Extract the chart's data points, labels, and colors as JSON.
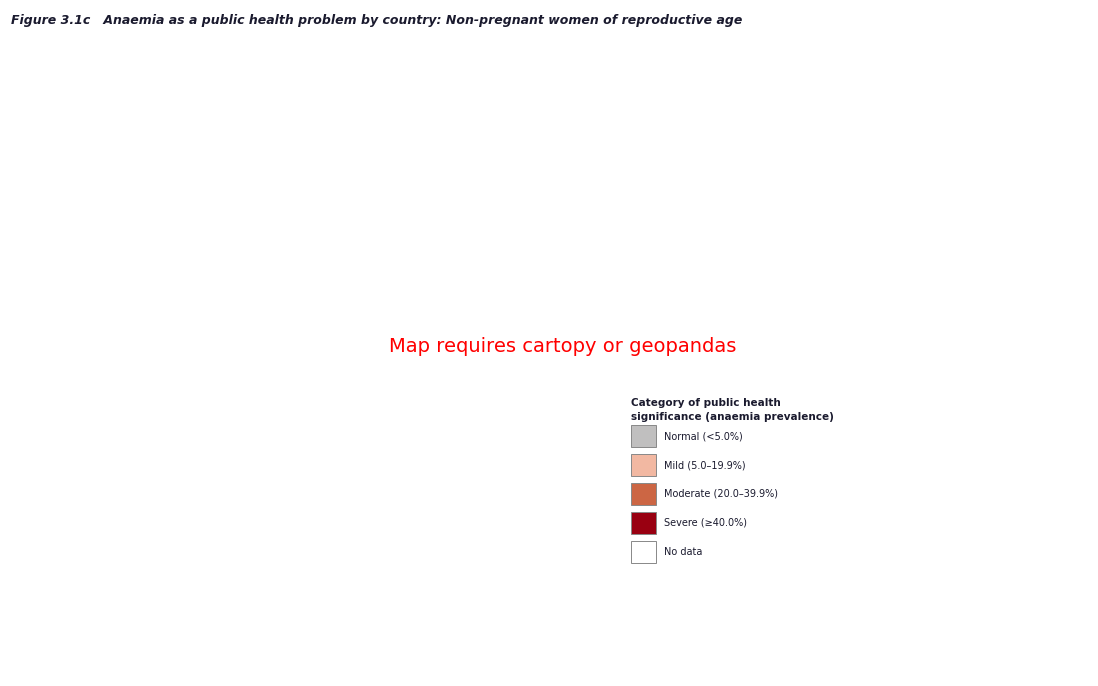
{
  "title": "Figure 3.1c   Anaemia as a public health problem by country: Non-pregnant women of reproductive age",
  "title_fontsize": 9,
  "title_fontstyle": "italic",
  "title_fontweight": "bold",
  "background_color": "#ffffff",
  "border_color": "#6b5a4e",
  "border_linewidth": 0.35,
  "legend_title_line1": "Category of public health",
  "legend_title_line2": "significance (anaemia prevalence)",
  "legend_title_fontsize": 7.5,
  "legend_title_fontweight": "bold",
  "legend_labels": [
    "Normal (<5.0%)",
    "Mild (5.0–19.9%)",
    "Moderate (20.0–39.9%)",
    "Severe (≥40.0%)",
    "No data"
  ],
  "legend_colors": [
    "#c0bfbf",
    "#f2b8a2",
    "#cc6644",
    "#990011",
    "#ffffff"
  ],
  "legend_edge_color": "#888888",
  "country_colors": {
    "Afghanistan": "#cc6644",
    "Angola": "#990011",
    "Albania": "#f2b8a2",
    "United Arab Emirates": "#f2b8a2",
    "Argentina": "#f2b8a2",
    "Armenia": "#cc6644",
    "Australia": "#f2b8a2",
    "Austria": "#f2b8a2",
    "Azerbaijan": "#cc6644",
    "Burundi": "#990011",
    "Belgium": "#f2b8a2",
    "Benin": "#990011",
    "Burkina Faso": "#990011",
    "Bangladesh": "#990011",
    "Bulgaria": "#f2b8a2",
    "Bahrain": "#f2b8a2",
    "Bahamas": "#f2b8a2",
    "Bosnia and Herzegovina": "#f2b8a2",
    "Bosnia and Herz.": "#f2b8a2",
    "Belarus": "#f2b8a2",
    "Belize": "#f2b8a2",
    "Bolivia": "#990011",
    "Brazil": "#f2b8a2",
    "Barbados": "#f2b8a2",
    "Bhutan": "#cc6644",
    "Botswana": "#cc6644",
    "Central African Rep.": "#990011",
    "Central African Republic": "#990011",
    "Canada": "#f2b8a2",
    "Switzerland": "#f2b8a2",
    "Chile": "#f2b8a2",
    "China": "#f2b8a2",
    "Ivory Coast": "#990011",
    "Côte d'Ivoire": "#990011",
    "Cameroon": "#990011",
    "Dem. Rep. Congo": "#990011",
    "Democratic Republic of the Congo": "#990011",
    "Congo": "#990011",
    "Republic of the Congo": "#990011",
    "Colombia": "#cc6644",
    "Comoros": "#cc6644",
    "Cape Verde": "#cc6644",
    "Costa Rica": "#cc6644",
    "Cuba": "#f2b8a2",
    "Cyprus": "#f2b8a2",
    "Czech Republic": "#f2b8a2",
    "Czechia": "#f2b8a2",
    "Germany": "#f2b8a2",
    "Djibouti": "#990011",
    "Denmark": "#f2b8a2",
    "Dominican Republic": "#cc6644",
    "Algeria": "#cc6644",
    "Ecuador": "#cc6644",
    "Egypt": "#cc6644",
    "Eritrea": "#990011",
    "W. Sahara": "#ffffff",
    "Western Sahara": "#ffffff",
    "Spain": "#f2b8a2",
    "Estonia": "#f2b8a2",
    "Ethiopia": "#990011",
    "Finland": "#f2b8a2",
    "Fiji": "#cc6644",
    "France": "#f2b8a2",
    "Gabon": "#cc6644",
    "United Kingdom": "#f2b8a2",
    "Georgia": "#cc6644",
    "Ghana": "#990011",
    "Guinea": "#990011",
    "Gambia": "#990011",
    "Guinea-Bissau": "#990011",
    "Eq. Guinea": "#cc6644",
    "Equatorial Guinea": "#cc6644",
    "Greece": "#f2b8a2",
    "Greenland": "#c0bfbf",
    "Guatemala": "#cc6644",
    "Guyana": "#cc6644",
    "Honduras": "#cc6644",
    "Croatia": "#f2b8a2",
    "Haiti": "#990011",
    "Hungary": "#f2b8a2",
    "Indonesia": "#cc6644",
    "India": "#990011",
    "Ireland": "#f2b8a2",
    "Iran": "#cc6644",
    "Iraq": "#cc6644",
    "Iceland": "#f2b8a2",
    "Israel": "#f2b8a2",
    "Italy": "#f2b8a2",
    "Jamaica": "#cc6644",
    "Jordan": "#f2b8a2",
    "Japan": "#f2b8a2",
    "Kazakhstan": "#cc6644",
    "Kenya": "#cc6644",
    "Kyrgyzstan": "#cc6644",
    "Cambodia": "#cc6644",
    "South Korea": "#f2b8a2",
    "Korea": "#f2b8a2",
    "Kuwait": "#f2b8a2",
    "Laos": "#990011",
    "Lebanon": "#f2b8a2",
    "Liberia": "#990011",
    "Libya": "#cc6644",
    "Lesotho": "#cc6644",
    "Lithuania": "#f2b8a2",
    "Luxembourg": "#f2b8a2",
    "Latvia": "#f2b8a2",
    "Morocco": "#cc6644",
    "Moldova": "#f2b8a2",
    "Madagascar": "#cc6644",
    "Maldives": "#cc6644",
    "Mexico": "#f2b8a2",
    "Macedonia": "#f2b8a2",
    "North Macedonia": "#f2b8a2",
    "Mali": "#990011",
    "Malta": "#f2b8a2",
    "Myanmar": "#990011",
    "Mongolia": "#cc6644",
    "Mozambique": "#990011",
    "Mauritania": "#cc6644",
    "Mauritius": "#cc6644",
    "Malawi": "#990011",
    "Malaysia": "#cc6644",
    "Namibia": "#cc6644",
    "Niger": "#990011",
    "Nigeria": "#990011",
    "Nicaragua": "#cc6644",
    "Netherlands": "#f2b8a2",
    "Norway": "#f2b8a2",
    "Nepal": "#990011",
    "New Zealand": "#f2b8a2",
    "Oman": "#f2b8a2",
    "Pakistan": "#cc6644",
    "Panama": "#f2b8a2",
    "Peru": "#cc6644",
    "Philippines": "#cc6644",
    "Papua New Guinea": "#cc6644",
    "Poland": "#f2b8a2",
    "North Korea": "#cc6644",
    "Paraguay": "#cc6644",
    "Portugal": "#f2b8a2",
    "Qatar": "#f2b8a2",
    "Romania": "#f2b8a2",
    "Russia": "#f2b8a2",
    "Rwanda": "#990011",
    "Saudi Arabia": "#cc6644",
    "Sudan": "#990011",
    "Senegal": "#990011",
    "Solomon Islands": "#cc6644",
    "Solomon Is.": "#cc6644",
    "Sierra Leone": "#990011",
    "El Salvador": "#cc6644",
    "Somalia": "#990011",
    "Somaliland": "#990011",
    "Serbia": "#f2b8a2",
    "S. Sudan": "#990011",
    "South Sudan": "#990011",
    "São Tomé and Principe": "#cc6644",
    "Sao Tome and Principe": "#cc6644",
    "Suriname": "#cc6644",
    "Slovakia": "#f2b8a2",
    "Slovenia": "#f2b8a2",
    "Sweden": "#f2b8a2",
    "Swaziland": "#cc6644",
    "eSwatini": "#cc6644",
    "Syria": "#f2b8a2",
    "Chad": "#990011",
    "Togo": "#990011",
    "Thailand": "#cc6644",
    "Tajikistan": "#cc6644",
    "Turkmenistan": "#cc6644",
    "Timor-Leste": "#cc6644",
    "Trinidad and Tobago": "#cc6644",
    "Tunisia": "#cc6644",
    "Turkey": "#f2b8a2",
    "Tanzania": "#990011",
    "Uganda": "#990011",
    "Ukraine": "#f2b8a2",
    "Uruguay": "#f2b8a2",
    "United States of America": "#f2b8a2",
    "United States": "#f2b8a2",
    "USA": "#f2b8a2",
    "Uzbekistan": "#cc6644",
    "Venezuela": "#cc6644",
    "Vietnam": "#cc6644",
    "Vanuatu": "#cc6644",
    "Samoa": "#cc6644",
    "Yemen": "#990011",
    "South Africa": "#cc6644",
    "Zambia": "#990011",
    "Zimbabwe": "#990011",
    "Sri Lanka": "#cc6644",
    "Lao PDR": "#990011",
    "Kosovo": "#f2b8a2",
    "Montenegro": "#f2b8a2",
    "Timor": "#cc6644",
    "East Timor": "#cc6644",
    "Tonga": "#cc6644",
    "Viet Nam": "#cc6644",
    "Palestinian territories": "#cc6644",
    "Palestine": "#cc6644",
    "West Bank": "#cc6644",
    "Gaza": "#cc6644",
    "Brunei": "#cc6644",
    "Singapore": "#f2b8a2",
    "Taiwan": "#f2b8a2",
    "New Caledonia": "#f2b8a2",
    "Fr. Polynesia": "#f2b8a2",
    "French Polynesia": "#f2b8a2",
    "Puerto Rico": "#f2b8a2",
    "Antigua and Barb.": "#f2b8a2",
    "Antigua and Barbuda": "#f2b8a2",
    "Dominica": "#f2b8a2",
    "Grenada": "#f2b8a2",
    "Saint Lucia": "#f2b8a2",
    "Saint Vincent and the Grenadines": "#f2b8a2",
    "St. Vin. and Gren.": "#f2b8a2",
    "Kiribati": "#cc6644",
    "Marshall Islands": "#cc6644",
    "Micronesia": "#cc6644",
    "Palau": "#cc6644",
    "Nauru": "#cc6644",
    "Tuvalu": "#cc6644",
    "Djibouti ": "#990011"
  }
}
